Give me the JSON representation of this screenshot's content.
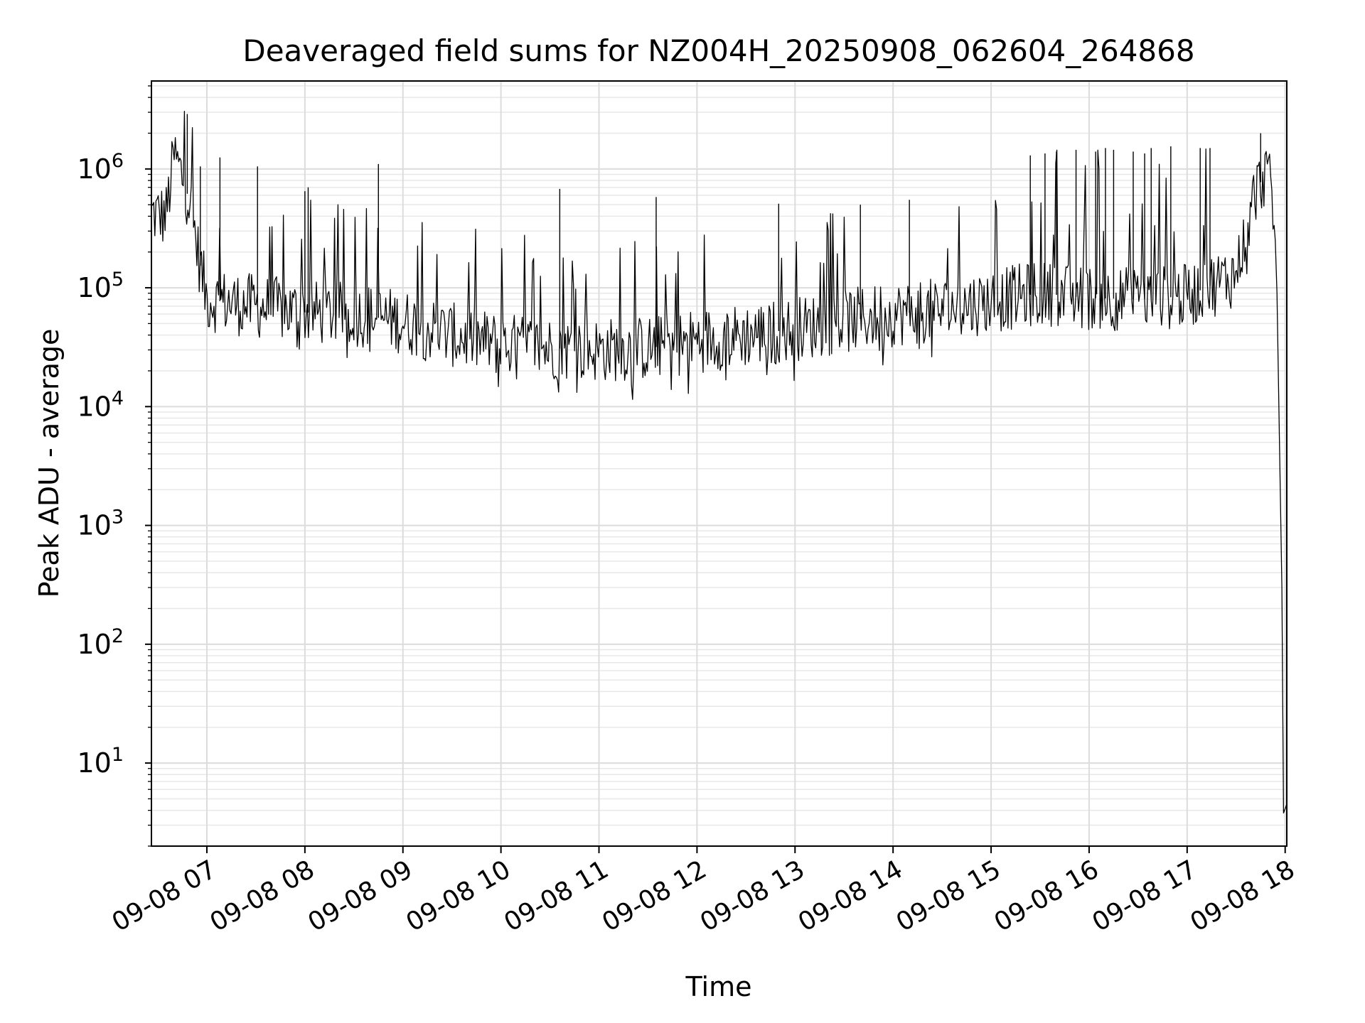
{
  "chart_data": {
    "type": "line",
    "title": "Deaveraged field sums for NZ004H_20250908_062604_264868",
    "xlabel": "Time",
    "ylabel": "Peak ADU - average",
    "yscale": "log",
    "ylim": [
      2,
      5500000
    ],
    "xlim": [
      "2025-09-08T06:26:04",
      "2025-09-08T18:01:00"
    ],
    "grid": true,
    "x_ticks": [
      "2025-09-08T07:00",
      "2025-09-08T08:00",
      "2025-09-08T09:00",
      "2025-09-08T10:00",
      "2025-09-08T11:00",
      "2025-09-08T12:00",
      "2025-09-08T13:00",
      "2025-09-08T14:00",
      "2025-09-08T15:00",
      "2025-09-08T16:00",
      "2025-09-08T17:00",
      "2025-09-08T18:00"
    ],
    "x_tick_labels": [
      "09-08 07",
      "09-08 08",
      "09-08 09",
      "09-08 10",
      "09-08 11",
      "09-08 12",
      "09-08 13",
      "09-08 14",
      "09-08 15",
      "09-08 16",
      "09-08 17",
      "09-08 18"
    ],
    "y_ticks": [
      10,
      100,
      1000,
      10000,
      100000,
      1000000
    ],
    "y_tick_labels": [
      {
        "base": "10",
        "exp": "1"
      },
      {
        "base": "10",
        "exp": "2"
      },
      {
        "base": "10",
        "exp": "3"
      },
      {
        "base": "10",
        "exp": "4"
      },
      {
        "base": "10",
        "exp": "5"
      },
      {
        "base": "10",
        "exp": "6"
      }
    ],
    "series": [
      {
        "color": "#000000",
        "points": [
          [
            "2025-09-08T06:26:04",
            420000
          ],
          [
            "2025-09-08T06:35:00",
            400000
          ],
          [
            "2025-09-08T06:40:00",
            1300000
          ],
          [
            "2025-09-08T06:45:00",
            850000
          ],
          [
            "2025-09-08T06:50:00",
            500000
          ],
          [
            "2025-09-08T06:55:00",
            180000
          ],
          [
            "2025-09-08T07:00:00",
            80000
          ],
          [
            "2025-09-08T07:30:00",
            70000
          ],
          [
            "2025-09-08T08:00:00",
            62000
          ],
          [
            "2025-09-08T08:30:00",
            60000
          ],
          [
            "2025-09-08T09:00:00",
            52000
          ],
          [
            "2025-09-08T09:30:00",
            40000
          ],
          [
            "2025-09-08T10:00:00",
            33000
          ],
          [
            "2025-09-08T10:30:00",
            31000
          ],
          [
            "2025-09-08T11:00:00",
            30000
          ],
          [
            "2025-09-08T11:30:00",
            31000
          ],
          [
            "2025-09-08T12:00:00",
            36000
          ],
          [
            "2025-09-08T12:30:00",
            40000
          ],
          [
            "2025-09-08T13:00:00",
            45000
          ],
          [
            "2025-09-08T13:30:00",
            52000
          ],
          [
            "2025-09-08T14:00:00",
            60000
          ],
          [
            "2025-09-08T14:30:00",
            65000
          ],
          [
            "2025-09-08T15:00:00",
            78000
          ],
          [
            "2025-09-08T15:30:00",
            90000
          ],
          [
            "2025-09-08T16:00:00",
            82000
          ],
          [
            "2025-09-08T16:30:00",
            80000
          ],
          [
            "2025-09-08T17:00:00",
            85000
          ],
          [
            "2025-09-08T17:30:00",
            130000
          ],
          [
            "2025-09-08T17:40:00",
            550000
          ],
          [
            "2025-09-08T17:48:00",
            950000
          ],
          [
            "2025-09-08T17:52:00",
            600000
          ],
          [
            "2025-09-08T17:55:00",
            90000
          ],
          [
            "2025-09-08T17:58:00",
            300
          ],
          [
            "2025-09-08T17:59:00",
            3.8
          ],
          [
            "2025-09-08T18:01:00",
            4.5
          ]
        ],
        "spikes": [
          [
            "2025-09-08T06:48:00",
            2900000
          ],
          [
            "2025-09-08T06:56:00",
            1050000
          ],
          [
            "2025-09-08T07:08:00",
            1250000
          ],
          [
            "2025-09-08T07:31:00",
            1050000
          ],
          [
            "2025-09-08T08:00:00",
            650000
          ],
          [
            "2025-09-08T08:02:00",
            700000
          ],
          [
            "2025-09-08T08:45:00",
            1100000
          ],
          [
            "2025-09-08T10:36:00",
            680000
          ],
          [
            "2025-09-08T11:35:00",
            580000
          ],
          [
            "2025-09-08T12:50:00",
            510000
          ],
          [
            "2025-09-08T13:40:00",
            500000
          ],
          [
            "2025-09-08T14:10:00",
            550000
          ],
          [
            "2025-09-08T15:24:00",
            1300000
          ],
          [
            "2025-09-08T15:33:00",
            1350000
          ],
          [
            "2025-09-08T15:40:00",
            1400000
          ],
          [
            "2025-09-08T15:52:00",
            1450000
          ],
          [
            "2025-09-08T16:04:00",
            1400000
          ],
          [
            "2025-09-08T16:10:00",
            1500000
          ],
          [
            "2025-09-08T16:15:00",
            1450000
          ],
          [
            "2025-09-08T16:27:00",
            1400000
          ],
          [
            "2025-09-08T16:34:00",
            1350000
          ],
          [
            "2025-09-08T16:38:00",
            1500000
          ],
          [
            "2025-09-08T16:50:00",
            1550000
          ],
          [
            "2025-09-08T17:08:00",
            1500000
          ],
          [
            "2025-09-08T17:14:00",
            1500000
          ],
          [
            "2025-09-08T17:45:00",
            2000000
          ]
        ]
      }
    ]
  }
}
